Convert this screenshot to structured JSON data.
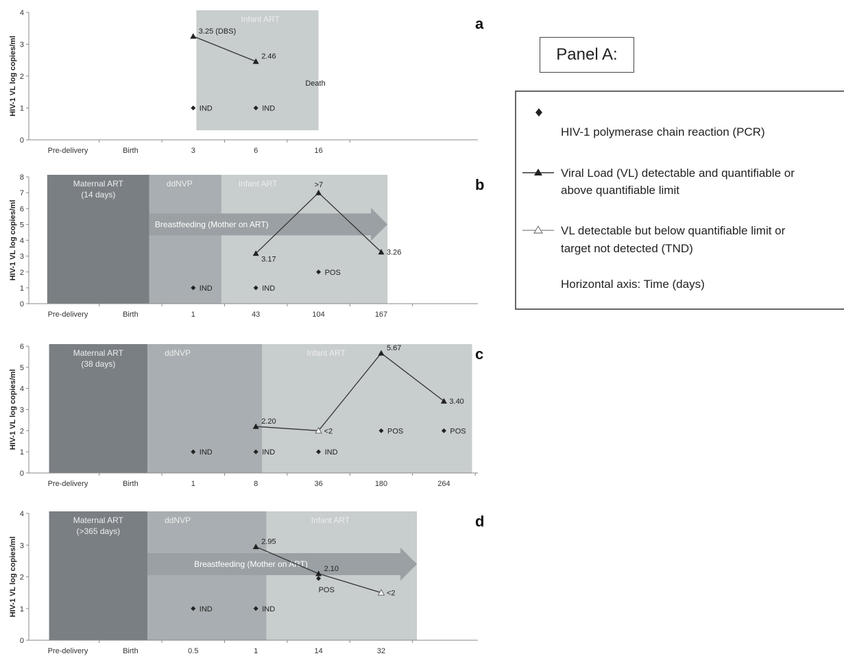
{
  "panel_title": "Panel A:",
  "legend": {
    "pcr": {
      "label": "HIV-1 polymerase chain reaction (PCR)"
    },
    "vl_quant": {
      "lines": [
        "Viral Load (VL) detectable and quantifiable or",
        "above quantifiable limit"
      ]
    },
    "vl_below": {
      "lines": [
        "VL detectable but below quantifiable limit or",
        "target not detected (TND)"
      ]
    },
    "axis_note": "Horizontal axis: Time (days)"
  },
  "colors": {
    "maternal": "#7a7f84",
    "ddnvp": "#a8aeb1",
    "infant": "#c8cdcd",
    "arrow": "#9aa0a3",
    "marker": "#222222"
  },
  "chart_data": [
    {
      "id": "a",
      "letter": "a",
      "type": "scatter",
      "ylabel": "HIV-1 VL log copies/ml",
      "categories": [
        "Pre-delivery",
        "Birth",
        "3",
        "6",
        "16"
      ],
      "ylim": [
        0,
        4
      ],
      "yticks": [
        "0",
        "1",
        "2",
        "3",
        "4"
      ],
      "regions": [
        {
          "name": "infant",
          "label": "Infant ART",
          "from": 2.05,
          "to": 4.0
        }
      ],
      "vl_points": [
        {
          "x": 2,
          "y": 3.25,
          "marker": "filled",
          "label": "3.25 (DBS)"
        },
        {
          "x": 3,
          "y": 2.46,
          "marker": "filled",
          "label": "2.46"
        }
      ],
      "pcr_points": [
        {
          "x": 2,
          "y": 1,
          "label": "IND"
        },
        {
          "x": 3,
          "y": 1,
          "label": "IND"
        }
      ],
      "annotations": [
        {
          "x": 3.95,
          "y": 1.7,
          "text": "Death"
        }
      ]
    },
    {
      "id": "b",
      "letter": "b",
      "type": "scatter",
      "ylabel": "HIV-1 VL log copies/ml",
      "categories": [
        "Pre-delivery",
        "Birth",
        "1",
        "43",
        "104",
        "167"
      ],
      "ylim": [
        0,
        8
      ],
      "yticks": [
        "0",
        "1",
        "2",
        "3",
        "4",
        "5",
        "6",
        "7",
        "8"
      ],
      "regions": [
        {
          "name": "maternal",
          "label": "Maternal ART|(14 days)",
          "from": -0.33,
          "to": 1.3
        },
        {
          "name": "ddnvp",
          "label": "ddNVP",
          "from": 1.3,
          "to": 2.45
        },
        {
          "name": "infant",
          "label": "Infant ART",
          "from": 2.45,
          "to": 5.1
        }
      ],
      "arrow": {
        "label": "Breastfeeding (Mother on ART)",
        "from": 1.3,
        "to": 5.1,
        "y": 5
      },
      "vl_points": [
        {
          "x": 3,
          "y": 3.17,
          "marker": "filled",
          "label": "3.17"
        },
        {
          "x": 4,
          "y": 7,
          "marker": "filled",
          "label": ">7"
        },
        {
          "x": 5,
          "y": 3.26,
          "marker": "filled",
          "label": "3.26"
        }
      ],
      "pcr_points": [
        {
          "x": 2,
          "y": 1,
          "label": "IND"
        },
        {
          "x": 3,
          "y": 1,
          "label": "IND"
        },
        {
          "x": 4,
          "y": 2,
          "label": "POS"
        }
      ]
    },
    {
      "id": "c",
      "letter": "c",
      "type": "scatter",
      "ylabel": "HIV-1 VL log copies/ml",
      "categories": [
        "Pre-delivery",
        "Birth",
        "1",
        "8",
        "36",
        "180",
        "264"
      ],
      "ylim": [
        0,
        6
      ],
      "yticks": [
        "0",
        "1",
        "2",
        "3",
        "4",
        "5",
        "6"
      ],
      "regions": [
        {
          "name": "maternal",
          "label": "Maternal ART|(38 days)",
          "from": -0.3,
          "to": 1.27
        },
        {
          "name": "ddnvp",
          "label": "ddNVP",
          "from": 1.27,
          "to": 3.1
        },
        {
          "name": "infant",
          "label": "Infant ART",
          "from": 3.1,
          "to": 6.45
        }
      ],
      "vl_points": [
        {
          "x": 3,
          "y": 2.2,
          "marker": "filled",
          "label": "2.20"
        },
        {
          "x": 4,
          "y": 2.0,
          "marker": "open",
          "label": "<2"
        },
        {
          "x": 5,
          "y": 5.67,
          "marker": "filled",
          "label": "5.67"
        },
        {
          "x": 6,
          "y": 3.4,
          "marker": "filled",
          "label": "3.40"
        }
      ],
      "pcr_points": [
        {
          "x": 2,
          "y": 1,
          "label": "IND"
        },
        {
          "x": 3,
          "y": 1,
          "label": "IND"
        },
        {
          "x": 4,
          "y": 1,
          "label": "IND"
        },
        {
          "x": 5,
          "y": 2,
          "label": "POS"
        },
        {
          "x": 6,
          "y": 2,
          "label": "POS"
        }
      ]
    },
    {
      "id": "d",
      "letter": "d",
      "type": "scatter",
      "ylabel": "HIV-1 VL log copies/ml",
      "categories": [
        "Pre-delivery",
        "Birth",
        "0.5",
        "1",
        "14",
        "32"
      ],
      "ylim": [
        0,
        4
      ],
      "yticks": [
        "0",
        "1",
        "2",
        "3",
        "4"
      ],
      "regions": [
        {
          "name": "maternal",
          "label": "Maternal ART|(>365 days)",
          "from": -0.3,
          "to": 1.27
        },
        {
          "name": "ddnvp",
          "label": "ddNVP",
          "from": 1.27,
          "to": 3.17
        },
        {
          "name": "infant",
          "label": "Infant ART",
          "from": 3.17,
          "to": 5.57
        }
      ],
      "arrow": {
        "label": "Breastfeeding (Mother on ART)",
        "from": 1.27,
        "to": 5.57,
        "y": 2.4
      },
      "vl_points": [
        {
          "x": 3,
          "y": 2.95,
          "marker": "filled",
          "label": "2.95"
        },
        {
          "x": 4,
          "y": 2.1,
          "marker": "filled",
          "label": "2.10"
        },
        {
          "x": 5,
          "y": 1.5,
          "marker": "open",
          "label": "<2"
        }
      ],
      "pcr_points": [
        {
          "x": 2,
          "y": 1,
          "label": "IND"
        },
        {
          "x": 3,
          "y": 1,
          "label": "IND"
        },
        {
          "x": 4,
          "y": 1.95,
          "label": "POS"
        }
      ]
    }
  ]
}
